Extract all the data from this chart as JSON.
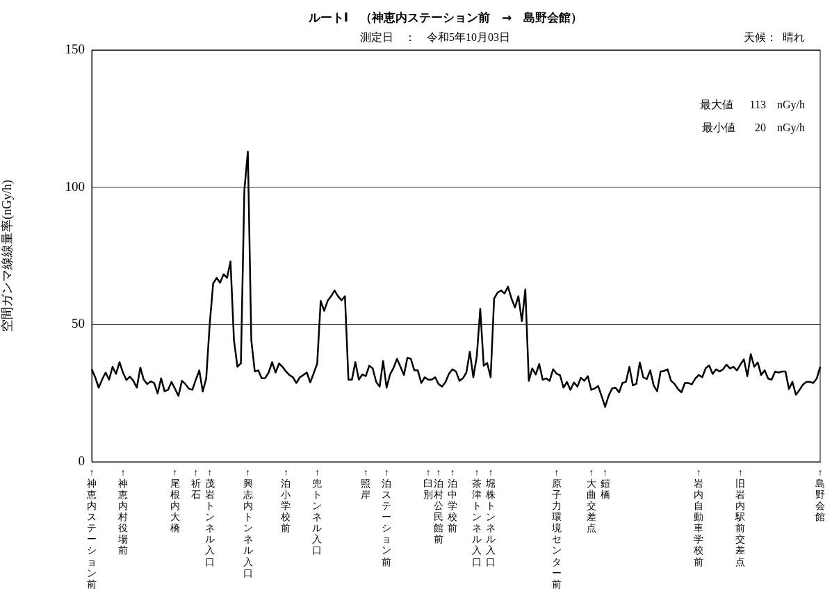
{
  "chart_data": {
    "type": "line",
    "title": "ルートⅠ　（神恵内ステーション前　→　島野会館）",
    "subtitle": "測定日　：　令和5年10月03日",
    "ylabel": "空間ガンマ線線量率(nGy/h)",
    "annotations": [
      "天候：  晴れ",
      "最大値　  113　nGy/h",
      "最小値　   20　nGy/h"
    ],
    "categories": [
      "↑神恵内ステーション前",
      null,
      null,
      null,
      null,
      null,
      null,
      null,
      null,
      "↑神恵内村役場前",
      null,
      null,
      null,
      null,
      null,
      null,
      null,
      null,
      null,
      null,
      null,
      null,
      null,
      null,
      "↑尾根内大橋",
      null,
      null,
      null,
      null,
      null,
      "↑祈石",
      null,
      null,
      null,
      "↑茂岩トンネル入口",
      null,
      null,
      null,
      null,
      null,
      null,
      null,
      null,
      null,
      null,
      "↑興志内トンネル入口",
      null,
      null,
      null,
      null,
      null,
      null,
      null,
      null,
      null,
      null,
      "↑泊小学校前",
      null,
      null,
      null,
      null,
      null,
      null,
      null,
      null,
      "↑兜トンネル入口",
      null,
      null,
      null,
      null,
      null,
      null,
      null,
      null,
      null,
      null,
      null,
      null,
      null,
      "↑照岸",
      null,
      null,
      null,
      null,
      null,
      "↑泊ステーション前",
      null,
      null,
      null,
      null,
      null,
      null,
      null,
      null,
      null,
      null,
      null,
      "↑臼別",
      null,
      null,
      "↑泊村公民館前",
      null,
      null,
      null,
      "↑泊中学校前",
      null,
      null,
      null,
      null,
      null,
      null,
      "↑茶津トンネル入口",
      null,
      null,
      null,
      "↑堀株トンネル入口",
      null,
      null,
      null,
      null,
      null,
      null,
      null,
      null,
      null,
      null,
      null,
      null,
      null,
      null,
      null,
      null,
      null,
      null,
      "↑原子力環境センター前",
      null,
      null,
      null,
      null,
      null,
      null,
      null,
      null,
      null,
      "↑大曲交差点",
      null,
      null,
      null,
      "↑鎧橋",
      null,
      null,
      null,
      null,
      null,
      null,
      null,
      null,
      null,
      null,
      null,
      null,
      null,
      null,
      null,
      null,
      null,
      null,
      null,
      null,
      null,
      null,
      null,
      null,
      null,
      null,
      "↑岩内自動車学校前",
      null,
      null,
      null,
      null,
      null,
      null,
      null,
      null,
      null,
      null,
      null,
      "↑旧岩内駅前交差点",
      null,
      null,
      null,
      null,
      null,
      null,
      null,
      null,
      null,
      null,
      null,
      null,
      null,
      null,
      null,
      null,
      null,
      null,
      null,
      null,
      null,
      null,
      "↑島野会館"
    ],
    "series": [
      {
        "color": "#000000",
        "values": [
          33.7,
          30.8,
          27,
          30,
          32.5,
          29.9,
          34.6,
          32,
          36.3,
          32.5,
          29.8,
          31,
          29.5,
          27,
          34.3,
          29.9,
          28.3,
          29.3,
          28.7,
          24.9,
          30.4,
          25.7,
          26.2,
          29.1,
          26.6,
          24,
          29.5,
          28.3,
          26.6,
          26.2,
          29.9,
          33.3,
          25.6,
          30.4,
          50,
          64.9,
          67,
          65.2,
          68.3,
          67,
          73,
          44.3,
          34.6,
          35.9,
          99,
          113,
          44.3,
          32.9,
          33.3,
          30.4,
          30.5,
          32.5,
          36.3,
          32.5,
          35.8,
          34.6,
          32.9,
          31.6,
          30.8,
          28.7,
          30.8,
          31.6,
          32.5,
          28.9,
          32.3,
          35.8,
          58.6,
          55,
          58.6,
          60.3,
          62.4,
          60.3,
          58.8,
          60.3,
          29.9,
          29.9,
          36.3,
          29.9,
          31.8,
          31.2,
          35,
          34,
          29.1,
          27.4,
          36.7,
          27,
          31.8,
          34.2,
          37.5,
          34.6,
          31.6,
          37.9,
          37.5,
          33.3,
          33.3,
          28.7,
          30.8,
          29.9,
          29.9,
          30.8,
          28.3,
          27.4,
          29.1,
          32.1,
          33.7,
          32.9,
          29.5,
          30.4,
          32.5,
          40.1,
          30.8,
          38.4,
          55.7,
          35,
          36,
          30.8,
          59.5,
          61.6,
          62.4,
          61.3,
          63.8,
          59.5,
          56.2,
          60.3,
          51.2,
          62.8,
          29.5,
          34,
          31.8,
          35.6,
          29.9,
          30.4,
          29.5,
          33.7,
          32.1,
          31.5,
          27,
          29.1,
          26.2,
          28.9,
          27.4,
          30.6,
          29.5,
          31.2,
          26.2,
          26.7,
          27.6,
          23.9,
          20,
          24,
          26.7,
          27,
          25.3,
          28.7,
          29.1,
          34.6,
          27.8,
          28.4,
          36.2,
          30.8,
          30.1,
          33.3,
          27.8,
          25.7,
          32.9,
          33.1,
          33.7,
          29.5,
          28.4,
          26.5,
          25.3,
          28.7,
          28.7,
          28.2,
          30.3,
          31.6,
          30.8,
          34.1,
          35.1,
          32,
          33.7,
          32.9,
          33.7,
          35.4,
          34,
          34.6,
          33.3,
          35.4,
          37.3,
          31.2,
          39.2,
          34.6,
          36.2,
          31.6,
          33.3,
          30.3,
          29.9,
          32.9,
          32.5,
          32.9,
          32.9,
          26.5,
          29.1,
          24.4,
          26.1,
          28.1,
          29.1,
          29.1,
          28.7,
          30.3,
          34.6
        ]
      }
    ],
    "ylim": [
      0,
      150
    ],
    "yticks": [
      0,
      50,
      100,
      150
    ],
    "grid": "y"
  }
}
